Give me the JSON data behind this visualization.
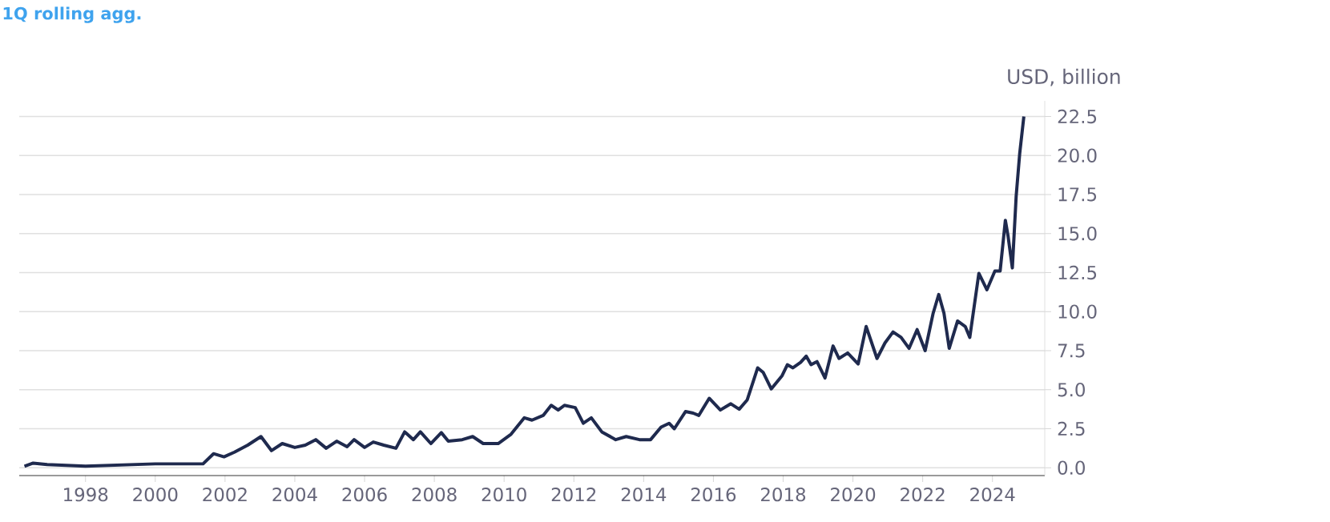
{
  "chart_data": {
    "type": "line",
    "title": "1Q rolling agg.",
    "ylabel": "USD, billion",
    "color": "#1f2a4e",
    "grid": "y",
    "xlim": [
      1996.1,
      2025.5
    ],
    "ylim": [
      -0.5,
      23.5
    ],
    "xticks": [
      1998,
      2000,
      2002,
      2004,
      2006,
      2008,
      2010,
      2012,
      2014,
      2016,
      2018,
      2020,
      2022,
      2024
    ],
    "yticks": [
      {
        "value": 0,
        "label": "0.0"
      },
      2.5,
      {
        "value": 5,
        "label": "5.0"
      },
      7.5,
      {
        "value": 10,
        "label": "10.0"
      },
      12.5,
      {
        "value": 15,
        "label": "15.0"
      },
      17.5,
      {
        "value": 20,
        "label": "20.0"
      },
      22.5
    ],
    "x": [
      1996.25,
      1996.5,
      1996.9,
      1998.0,
      2000.0,
      2001.37,
      2001.67,
      2001.97,
      2002.27,
      2002.65,
      2003.03,
      2003.33,
      2003.64,
      2004.0,
      2004.3,
      2004.6,
      2004.9,
      2005.2,
      2005.5,
      2005.7,
      2006.0,
      2006.25,
      2006.55,
      2006.9,
      2007.15,
      2007.4,
      2007.6,
      2007.9,
      2008.2,
      2008.4,
      2008.8,
      2009.1,
      2009.4,
      2009.83,
      2010.2,
      2010.58,
      2010.8,
      2011.12,
      2011.35,
      2011.55,
      2011.73,
      2012.04,
      2012.27,
      2012.5,
      2012.8,
      2013.2,
      2013.5,
      2013.88,
      2014.2,
      2014.5,
      2014.73,
      2014.88,
      2015.2,
      2015.42,
      2015.58,
      2015.88,
      2016.2,
      2016.5,
      2016.74,
      2016.97,
      2017.27,
      2017.43,
      2017.66,
      2017.97,
      2018.12,
      2018.28,
      2018.5,
      2018.66,
      2018.8,
      2018.97,
      2019.2,
      2019.43,
      2019.6,
      2019.85,
      2020.15,
      2020.38,
      2020.69,
      2020.92,
      2021.15,
      2021.38,
      2021.61,
      2021.84,
      2022.07,
      2022.3,
      2022.46,
      2022.61,
      2022.76,
      2023.0,
      2023.22,
      2023.35,
      2023.61,
      2023.84,
      2024.07,
      2024.22,
      2024.37,
      2024.45,
      2024.57,
      2024.68,
      2024.78,
      2024.9
    ],
    "values": [
      0.1,
      0.3,
      0.2,
      0.1,
      0.25,
      0.25,
      0.9,
      0.7,
      1.0,
      1.45,
      2.0,
      1.1,
      1.55,
      1.3,
      1.45,
      1.8,
      1.25,
      1.7,
      1.35,
      1.8,
      1.3,
      1.65,
      1.45,
      1.25,
      2.3,
      1.8,
      2.3,
      1.55,
      2.25,
      1.7,
      1.8,
      2.0,
      1.55,
      1.55,
      2.15,
      3.2,
      3.05,
      3.35,
      4.0,
      3.7,
      4.0,
      3.85,
      2.85,
      3.2,
      2.3,
      1.8,
      2.0,
      1.8,
      1.8,
      2.6,
      2.85,
      2.5,
      3.6,
      3.5,
      3.35,
      4.45,
      3.7,
      4.1,
      3.75,
      4.35,
      6.4,
      6.1,
      5.05,
      5.9,
      6.6,
      6.4,
      6.75,
      7.15,
      6.6,
      6.8,
      5.75,
      7.8,
      7.0,
      7.35,
      6.65,
      9.05,
      7.0,
      8.0,
      8.7,
      8.35,
      7.65,
      8.85,
      7.5,
      9.9,
      11.1,
      9.9,
      7.65,
      9.4,
      9.05,
      8.35,
      12.45,
      11.4,
      12.6,
      12.6,
      15.85,
      14.8,
      12.8,
      17.4,
      20.1,
      22.5
    ]
  }
}
